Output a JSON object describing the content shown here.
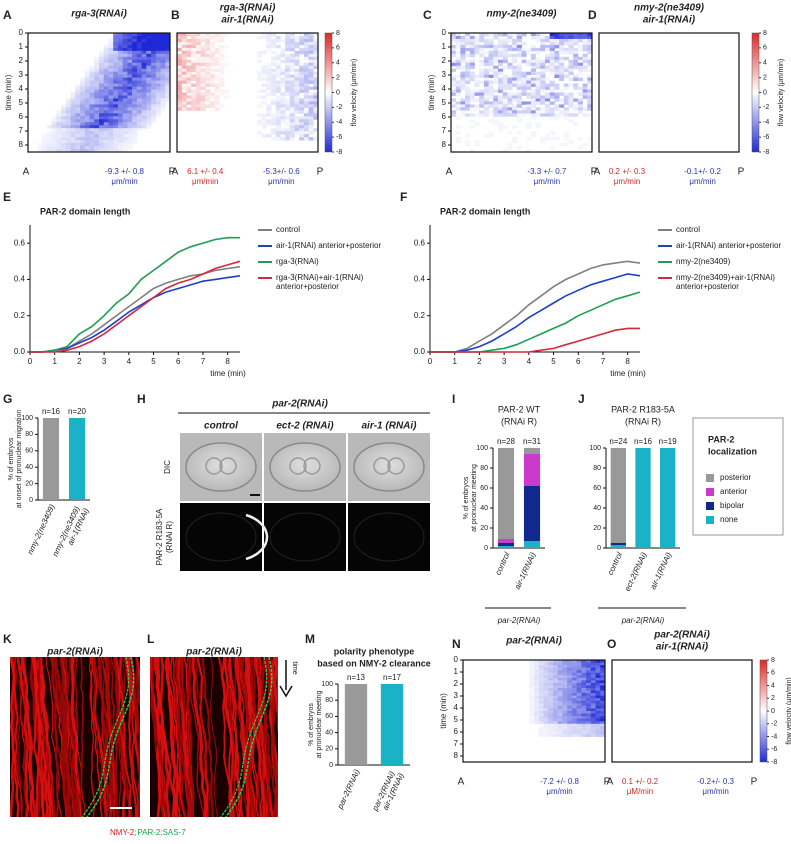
{
  "kymographs": [
    {
      "letter": "A",
      "title": [
        "rga-3(RNAi)"
      ],
      "ylabel": "time (min)",
      "ylim": [
        0,
        8.5
      ],
      "yticks": [
        0,
        1,
        2,
        3,
        4,
        5,
        6,
        7,
        8
      ],
      "ends": [
        "A",
        "P"
      ],
      "notes": [
        {
          "lines": [
            "-9.3 +/- 0.8",
            "μm/min"
          ],
          "color": "#2a35b0"
        }
      ]
    },
    {
      "letter": "B",
      "title": [
        "rga-3(RNAi)",
        "air-1(RNAi)"
      ],
      "ends": [
        "A",
        "P"
      ],
      "notes": [
        {
          "lines": [
            "6.1 +/- 0.4",
            "μm/min"
          ],
          "color": "#d02828"
        },
        {
          "lines": [
            "-5.3+/- 0.6",
            "μm/min"
          ],
          "color": "#2a35b0"
        }
      ]
    },
    {
      "letter": "C",
      "title": [
        "nmy-2(ne3409)"
      ],
      "ylabel": "time (min)",
      "ylim": [
        0,
        8.5
      ],
      "yticks": [
        0,
        1,
        2,
        3,
        4,
        5,
        6,
        7,
        8
      ],
      "ends": [
        "A",
        "P"
      ],
      "notes": [
        {
          "lines": [
            "-3.3 +/- 0.7",
            "μm/min"
          ],
          "color": "#2a35b0"
        }
      ]
    },
    {
      "letter": "D",
      "title": [
        "nmy-2(ne3409)",
        "air-1(RNAi)"
      ],
      "ends": [
        "A",
        "P"
      ],
      "notes": [
        {
          "lines": [
            "0.2 +/- 0.3",
            "μm/min"
          ],
          "color": "#d02828"
        },
        {
          "lines": [
            "-0.1+/- 0.2",
            "μm/min"
          ],
          "color": "#2a35b0"
        }
      ]
    },
    {
      "letter": "N",
      "title": [
        "par-2(RNAi)"
      ],
      "ylabel": "time (min)",
      "ylim": [
        0,
        8.5
      ],
      "yticks": [
        0,
        1,
        2,
        3,
        4,
        5,
        6,
        7,
        8
      ],
      "ends": [
        "A",
        "P"
      ],
      "notes": [
        {
          "lines": [
            "-7.2 +/- 0.8",
            "μm/min"
          ],
          "color": "#2a35b0"
        }
      ]
    },
    {
      "letter": "O",
      "title": [
        "par-2(RNAi)",
        "air-1(RNAi)"
      ],
      "ends": [
        "A",
        "P"
      ],
      "notes": [
        {
          "lines": [
            "0.1 +/- 0.2",
            "μM/min"
          ],
          "color": "#d02828"
        },
        {
          "lines": [
            "-0.2+/- 0.3",
            "μm/min"
          ],
          "color": "#2a35b0"
        }
      ]
    }
  ],
  "colorbars": [
    {
      "ylim": [
        -8,
        8
      ],
      "yticks": [
        8,
        6,
        4,
        2,
        0,
        -2,
        -4,
        -6,
        -8
      ],
      "label": "flow velocity (μm/min)"
    },
    {
      "ylim": [
        -8,
        8
      ],
      "yticks": [
        8,
        6,
        4,
        2,
        0,
        -2,
        -4,
        -6,
        -8
      ],
      "label": "flow velocity (μm/min)"
    },
    {
      "ylim": [
        -8,
        8
      ],
      "yticks": [
        8,
        6,
        4,
        2,
        0,
        -2,
        -4,
        -6,
        -8
      ],
      "label": "flow velocity (μm/min)"
    }
  ],
  "chart_data": [
    {
      "type": "line",
      "letter": "E",
      "title": "PAR-2 domain length",
      "xlabel": "time (min)",
      "x": [
        0,
        0.5,
        1,
        1.5,
        2,
        2.5,
        3,
        3.5,
        4,
        4.5,
        5,
        5.5,
        6,
        6.5,
        7,
        7.5,
        8,
        8.5
      ],
      "xlim": [
        0,
        8.5
      ],
      "xticks": [
        0,
        1,
        2,
        3,
        4,
        5,
        6,
        7,
        8
      ],
      "ylim": [
        0,
        0.7
      ],
      "yticks": [
        {
          "value": 0,
          "label": "0.0"
        },
        0.2,
        0.4,
        0.6
      ],
      "series": [
        {
          "name": "control",
          "color": "#808080",
          "values": [
            0,
            0,
            0.01,
            0.02,
            0.06,
            0.1,
            0.15,
            0.2,
            0.25,
            0.3,
            0.35,
            0.38,
            0.4,
            0.42,
            0.43,
            0.45,
            0.46,
            0.47
          ]
        },
        {
          "name": "air-1(RNAi) anterior+posterior",
          "color": "#1f3fc8",
          "values": [
            0,
            0,
            0.01,
            0.02,
            0.05,
            0.08,
            0.12,
            0.17,
            0.22,
            0.26,
            0.3,
            0.33,
            0.35,
            0.37,
            0.39,
            0.4,
            0.41,
            0.42
          ]
        },
        {
          "name": "rga-3(RNAi)",
          "color": "#1e9e50",
          "values": [
            0,
            0,
            0.01,
            0.03,
            0.1,
            0.14,
            0.2,
            0.27,
            0.32,
            0.4,
            0.45,
            0.5,
            0.55,
            0.58,
            0.6,
            0.62,
            0.63,
            0.63
          ]
        },
        {
          "name": "rga-3(RNAi)+air-1(RNAi) anterior+posterior",
          "color": "#d42a3a",
          "values": [
            0,
            0,
            0,
            0.01,
            0.03,
            0.06,
            0.1,
            0.15,
            0.2,
            0.25,
            0.3,
            0.35,
            0.38,
            0.4,
            0.43,
            0.46,
            0.48,
            0.5
          ]
        }
      ]
    },
    {
      "type": "line",
      "letter": "F",
      "title": "PAR-2 domain length",
      "xlabel": "time (min)",
      "x": [
        0,
        0.5,
        1,
        1.5,
        2,
        2.5,
        3,
        3.5,
        4,
        4.5,
        5,
        5.5,
        6,
        6.5,
        7,
        7.5,
        8,
        8.5
      ],
      "xlim": [
        0,
        8.5
      ],
      "xticks": [
        0,
        1,
        2,
        3,
        4,
        5,
        6,
        7,
        8
      ],
      "ylim": [
        0,
        0.7
      ],
      "yticks": [
        {
          "value": 0,
          "label": "0.0"
        },
        0.2,
        0.4,
        0.6
      ],
      "series": [
        {
          "name": "control",
          "color": "#808080",
          "values": [
            0,
            0,
            0,
            0.02,
            0.06,
            0.1,
            0.15,
            0.2,
            0.26,
            0.31,
            0.36,
            0.4,
            0.43,
            0.46,
            0.48,
            0.49,
            0.5,
            0.49
          ]
        },
        {
          "name": "air-1(RNAi) anterior+posterior",
          "color": "#1f3fc8",
          "values": [
            0,
            0,
            0,
            0.01,
            0.03,
            0.06,
            0.1,
            0.14,
            0.19,
            0.23,
            0.27,
            0.31,
            0.34,
            0.37,
            0.39,
            0.41,
            0.43,
            0.42
          ]
        },
        {
          "name": "nmy-2(ne3409)",
          "color": "#1e9e50",
          "values": [
            0,
            0,
            0,
            0,
            0,
            0.01,
            0.02,
            0.04,
            0.07,
            0.1,
            0.13,
            0.16,
            0.2,
            0.23,
            0.26,
            0.29,
            0.31,
            0.33
          ]
        },
        {
          "name": "nmy-2(ne3409)+air-1(RNAi) anterior+posterior",
          "color": "#d42a3a",
          "values": [
            0,
            0,
            0,
            0,
            0,
            0,
            0,
            0,
            0,
            0.01,
            0.02,
            0.04,
            0.06,
            0.08,
            0.1,
            0.12,
            0.13,
            0.13
          ]
        }
      ]
    },
    {
      "type": "bar",
      "letter": "G",
      "ylabel": [
        "% of embryos",
        "at onset of pronuclear migration"
      ],
      "categories": [
        "nmy-2(ne3409)",
        "nmy-2(ne3409) air-1(RNAi)"
      ],
      "values": [
        100,
        100
      ],
      "colors": [
        "#999999",
        "#19b2c6"
      ],
      "counts": [
        "n=16",
        "n=20"
      ],
      "ylim": [
        0,
        100
      ],
      "yticks": [
        0,
        20,
        40,
        60,
        80,
        100
      ]
    },
    {
      "type": "stacked_bar",
      "letter": "I",
      "title": [
        "PAR-2 WT",
        "(RNAi R)"
      ],
      "ylabel": [
        "% of embryos",
        "at pronuclear meeting"
      ],
      "categories": [
        "control",
        "air-1(RNAi)"
      ],
      "counts": [
        "n=28",
        "n=31"
      ],
      "group": "par-2(RNAi)",
      "ylim": [
        0,
        100
      ],
      "yticks": [
        0,
        20,
        40,
        60,
        80,
        100
      ],
      "series": [
        {
          "name": "posterior",
          "color": "#999999",
          "values": [
            91,
            6
          ]
        },
        {
          "name": "anterior",
          "color": "#cc3acc",
          "values": [
            4,
            32
          ]
        },
        {
          "name": "bipolar",
          "color": "#11288f",
          "values": [
            3,
            55
          ]
        },
        {
          "name": "none",
          "color": "#19b2c6",
          "values": [
            2,
            7
          ]
        }
      ]
    },
    {
      "type": "stacked_bar",
      "letter": "J",
      "title": [
        "PAR-2 R183-5A",
        "(RNAi R)"
      ],
      "categories": [
        "control",
        "ect-2(RNAi)",
        "air-1(RNAi)"
      ],
      "counts": [
        "n=24",
        "n=16",
        "n=19"
      ],
      "group": "par-2(RNAi)",
      "ylim": [
        0,
        100
      ],
      "yticks": [
        0,
        20,
        40,
        60,
        80,
        100
      ],
      "series": [
        {
          "name": "posterior",
          "color": "#999999",
          "values": [
            95,
            0,
            0
          ]
        },
        {
          "name": "anterior",
          "color": "#cc3acc",
          "values": [
            0,
            0,
            0
          ]
        },
        {
          "name": "bipolar",
          "color": "#11288f",
          "values": [
            2,
            0,
            0
          ]
        },
        {
          "name": "none",
          "color": "#19b2c6",
          "values": [
            3,
            100,
            100
          ]
        }
      ]
    },
    {
      "type": "bar",
      "letter": "M",
      "title": [
        "polarity phenotype",
        "based on NMY-2 clearance"
      ],
      "ylabel": [
        "% of embryos",
        "at pronuclear meeting"
      ],
      "categories": [
        "par-2(RNAi)",
        "par-2(RNAi) air-1(RNAi)"
      ],
      "values": [
        100,
        100
      ],
      "colors": [
        "#999999",
        "#19b2c6"
      ],
      "counts": [
        "n=13",
        "n=17"
      ],
      "ylim": [
        0,
        100
      ],
      "yticks": [
        0,
        20,
        40,
        60,
        80,
        100
      ]
    }
  ],
  "localization_legend": {
    "title": [
      "PAR-2",
      "localization"
    ]
  },
  "panel_h": {
    "letter": "H",
    "title": "par-2(RNAi)",
    "columns": [
      "control",
      "ect-2 (RNAi)",
      "air-1 (RNAi)"
    ],
    "row_dic": "DIC",
    "row_par2": [
      "PAR-2 R183-5A",
      "(RNAi R)"
    ]
  },
  "panel_k": {
    "letter": "K",
    "title": [
      "par-2(RNAi)"
    ]
  },
  "panel_l": {
    "letter": "L",
    "title": [
      "par-2(RNAi)",
      "air-1(RNAi)"
    ],
    "arrow_label": "time"
  },
  "channel_label": [
    {
      "text": "NMY-2;",
      "color": "#d42020"
    },
    {
      "text": "PAR-2;SAS-7",
      "color": "#1e9e50"
    }
  ]
}
